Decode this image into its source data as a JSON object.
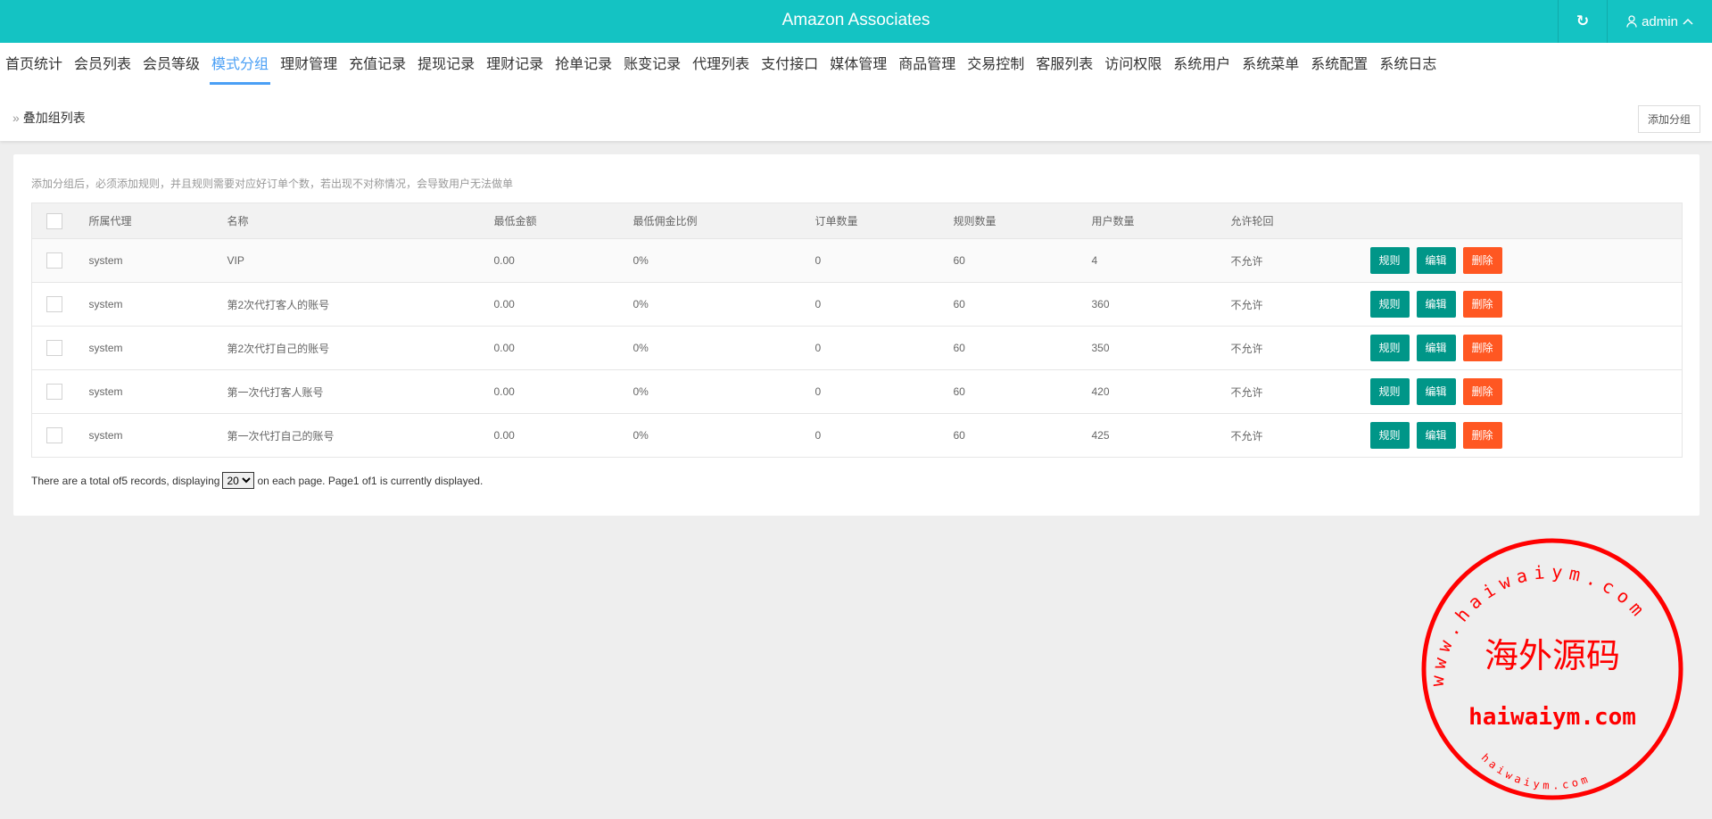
{
  "header": {
    "title": "Amazon Associates",
    "refresh_icon": "refresh-icon",
    "user": "admin",
    "user_icon": "user-icon",
    "caret_icon": "chevron-up-icon"
  },
  "nav": {
    "active": "模式分组",
    "items": [
      "首页统计",
      "会员列表",
      "会员等级",
      "模式分组",
      "理财管理",
      "充值记录",
      "提现记录",
      "理财记录",
      "抢单记录",
      "账变记录",
      "代理列表",
      "支付接口",
      "媒体管理",
      "商品管理",
      "交易控制",
      "客服列表",
      "访问权限",
      "系统用户",
      "系统菜单",
      "系统配置",
      "系统日志"
    ]
  },
  "breadcrumb": {
    "arrow": "»",
    "title": "叠加组列表",
    "add_button": "添加分组"
  },
  "notice": "添加分组后，必须添加规则，并且规则需要对应好订单个数，若出现不对称情况，会导致用户无法做单",
  "table": {
    "columns": [
      "所属代理",
      "名称",
      "最低金额",
      "最低佣金比例",
      "订单数量",
      "规则数量",
      "用户数量",
      "允许轮回"
    ],
    "rows": [
      [
        "system",
        "VIP",
        "0.00",
        "0%",
        "0",
        "60",
        "4",
        "不允许"
      ],
      [
        "system",
        "第2次代打客人的账号",
        "0.00",
        "0%",
        "0",
        "60",
        "360",
        "不允许"
      ],
      [
        "system",
        "第2次代打自己的账号",
        "0.00",
        "0%",
        "0",
        "60",
        "350",
        "不允许"
      ],
      [
        "system",
        "第一次代打客人账号",
        "0.00",
        "0%",
        "0",
        "60",
        "420",
        "不允许"
      ],
      [
        "system",
        "第一次代打自己的账号",
        "0.00",
        "0%",
        "0",
        "60",
        "425",
        "不允许"
      ]
    ],
    "actions": [
      "规则",
      "编辑",
      "删除"
    ]
  },
  "footer": {
    "before": "There are a total of5 records, displaying",
    "page_size": "20",
    "after": "on each page. Page1 of1 is currently displayed."
  },
  "watermark": {
    "center": "海外源码",
    "domain": "haiwaiym.com",
    "ring_top": "www.haiwaiym.com",
    "ring_bottom": "haiwaiym.com"
  },
  "colors": {
    "header": "#14c3c3",
    "active_tab": "#4a9ff5",
    "btn_green": "#009688",
    "btn_red": "#ff5722",
    "stamp": "#ff0000"
  }
}
